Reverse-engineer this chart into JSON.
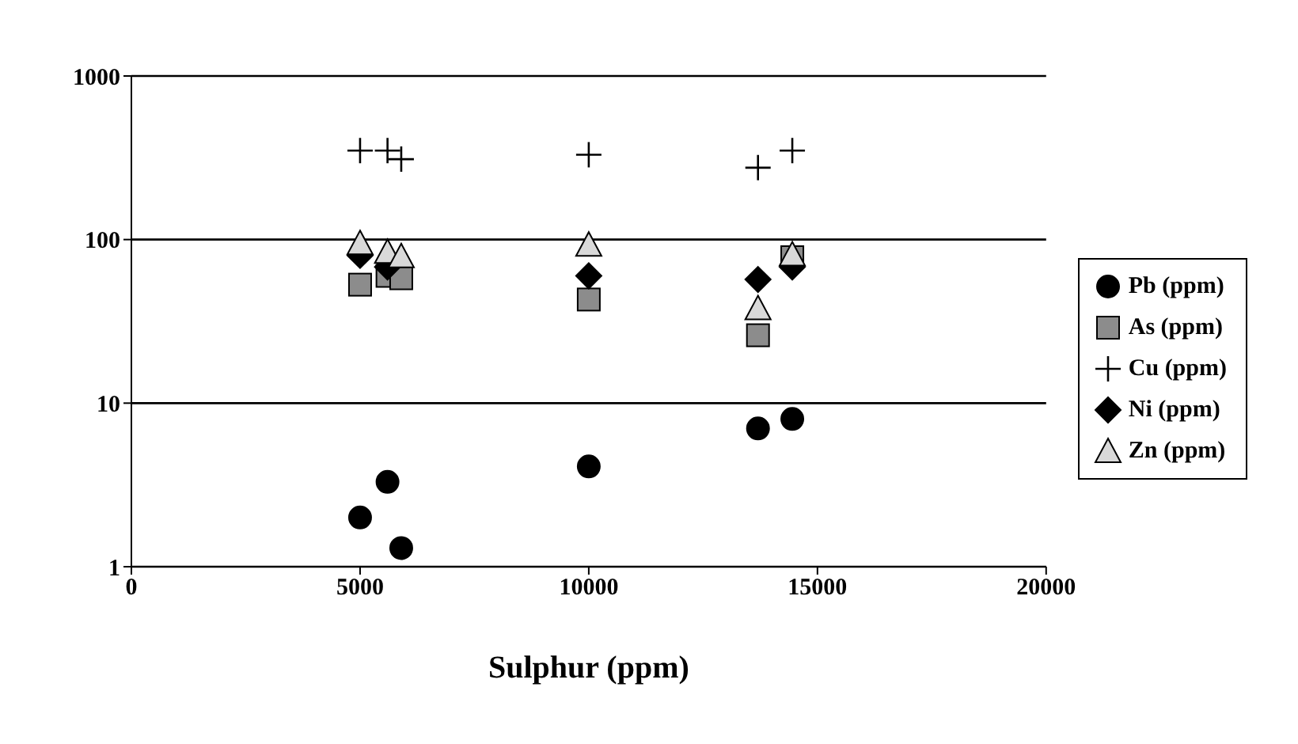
{
  "chart_data": {
    "type": "scatter",
    "xlabel": "Sulphur (ppm)",
    "log": "y",
    "grid": "y",
    "legend": "right",
    "x": [
      5000,
      5600,
      5900,
      10000,
      13700,
      14450
    ],
    "xlim": [
      0,
      20000
    ],
    "xticks": [
      0,
      5000,
      10000,
      15000,
      20000
    ],
    "ylim": [
      1,
      1000
    ],
    "yticks": [
      1,
      10,
      100,
      1000
    ],
    "series": [
      {
        "name": "Pb (ppm)",
        "color": "#000000",
        "marker": "circle",
        "values": [
          2.0,
          3.3,
          1.3,
          4.1,
          7.0,
          8.0
        ]
      },
      {
        "name": "As (ppm)",
        "color": "#8c8c8c",
        "marker": "square",
        "values": [
          53,
          60,
          58,
          43,
          26,
          78
        ]
      },
      {
        "name": "Cu (ppm)",
        "color": "#000000",
        "marker": "cross",
        "values": [
          350,
          350,
          310,
          330,
          275,
          350
        ]
      },
      {
        "name": "Ni (ppm)",
        "color": "#000000",
        "marker": "diamond",
        "values": [
          80,
          68,
          null,
          60,
          57,
          68
        ]
      },
      {
        "name": "Zn (ppm)",
        "color": "#d9d9d9",
        "marker": "triangle",
        "values": [
          95,
          84,
          79,
          93,
          38,
          81
        ]
      }
    ]
  }
}
